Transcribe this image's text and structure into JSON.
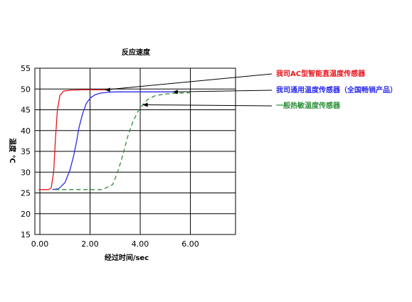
{
  "chart_data": {
    "type": "line",
    "title": "反应速度",
    "xlabel": "经过时间/sec",
    "ylabel": "温度 ℃",
    "xlim": [
      -0.2,
      7.8
    ],
    "ylim": [
      15,
      55
    ],
    "xticks": [
      0,
      2,
      4,
      6
    ],
    "xtick_labels": [
      "0.00",
      "2.00",
      "4.00",
      "6.00"
    ],
    "yticks": [
      15,
      20,
      25,
      30,
      35,
      40,
      45,
      50,
      55
    ],
    "ytick_labels": [
      "15",
      "20",
      "25",
      "30",
      "35",
      "40",
      "45",
      "50",
      "55"
    ],
    "grid": true,
    "legend_placement": "right, with leader lines",
    "series": [
      {
        "name": "我司AC型智能直温度传感器",
        "color": "#e8141b",
        "style": "solid",
        "x": [
          -0.05,
          0.35,
          0.45,
          0.55,
          0.62,
          0.7,
          0.8,
          0.95,
          1.2,
          1.6,
          2.2,
          2.8
        ],
        "y": [
          25.8,
          25.8,
          26.2,
          30,
          38,
          45,
          48.5,
          49.5,
          49.7,
          49.8,
          49.8,
          49.8
        ]
      },
      {
        "name": "我司通用温度传感器（全国畅销产品）",
        "color": "#2a2aee",
        "style": "solid",
        "x": [
          0.5,
          0.75,
          1.0,
          1.2,
          1.35,
          1.45,
          1.55,
          1.7,
          1.85,
          2.0,
          2.2,
          2.4,
          2.7,
          3.0,
          3.5,
          4.0,
          4.5,
          5.0,
          5.5
        ],
        "y": [
          25.8,
          26.0,
          27.5,
          30.5,
          34,
          37,
          40.5,
          44,
          46.5,
          47.8,
          48.6,
          49.0,
          49.2,
          49.3,
          49.3,
          49.3,
          49.3,
          49.3,
          49.3
        ]
      },
      {
        "name": "一般热敏温度传感器",
        "color": "#2d8f3a",
        "style": "dashed",
        "x": [
          0.6,
          1.0,
          1.5,
          2.0,
          2.5,
          2.9,
          3.1,
          3.3,
          3.5,
          3.7,
          3.9,
          4.1,
          4.3,
          4.6,
          5.0,
          5.5,
          6.0
        ],
        "y": [
          25.8,
          25.8,
          25.8,
          25.8,
          25.8,
          27,
          30,
          34,
          38.5,
          42,
          44.5,
          46.2,
          47.5,
          48.4,
          48.8,
          49.0,
          49.1
        ]
      }
    ]
  }
}
